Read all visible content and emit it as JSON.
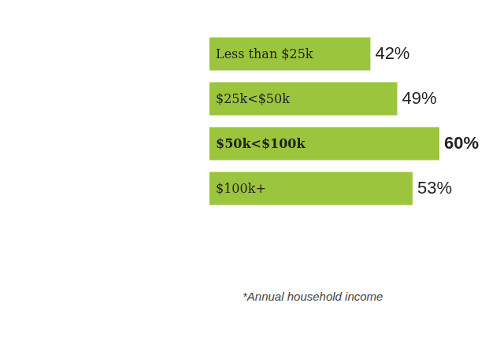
{
  "chart_data": {
    "type": "bar",
    "orientation": "horizontal",
    "categories": [
      "Less than $25k",
      "$25k<$50k",
      "$50k<$100k",
      "$100k+"
    ],
    "values": [
      42,
      49,
      60,
      53
    ],
    "value_labels": [
      "42%",
      "49%",
      "60%",
      "53%"
    ],
    "data_labels": true,
    "color": "#9bc53d",
    "grid": false,
    "tick_labels": false,
    "annotation": "*Annual household income"
  }
}
